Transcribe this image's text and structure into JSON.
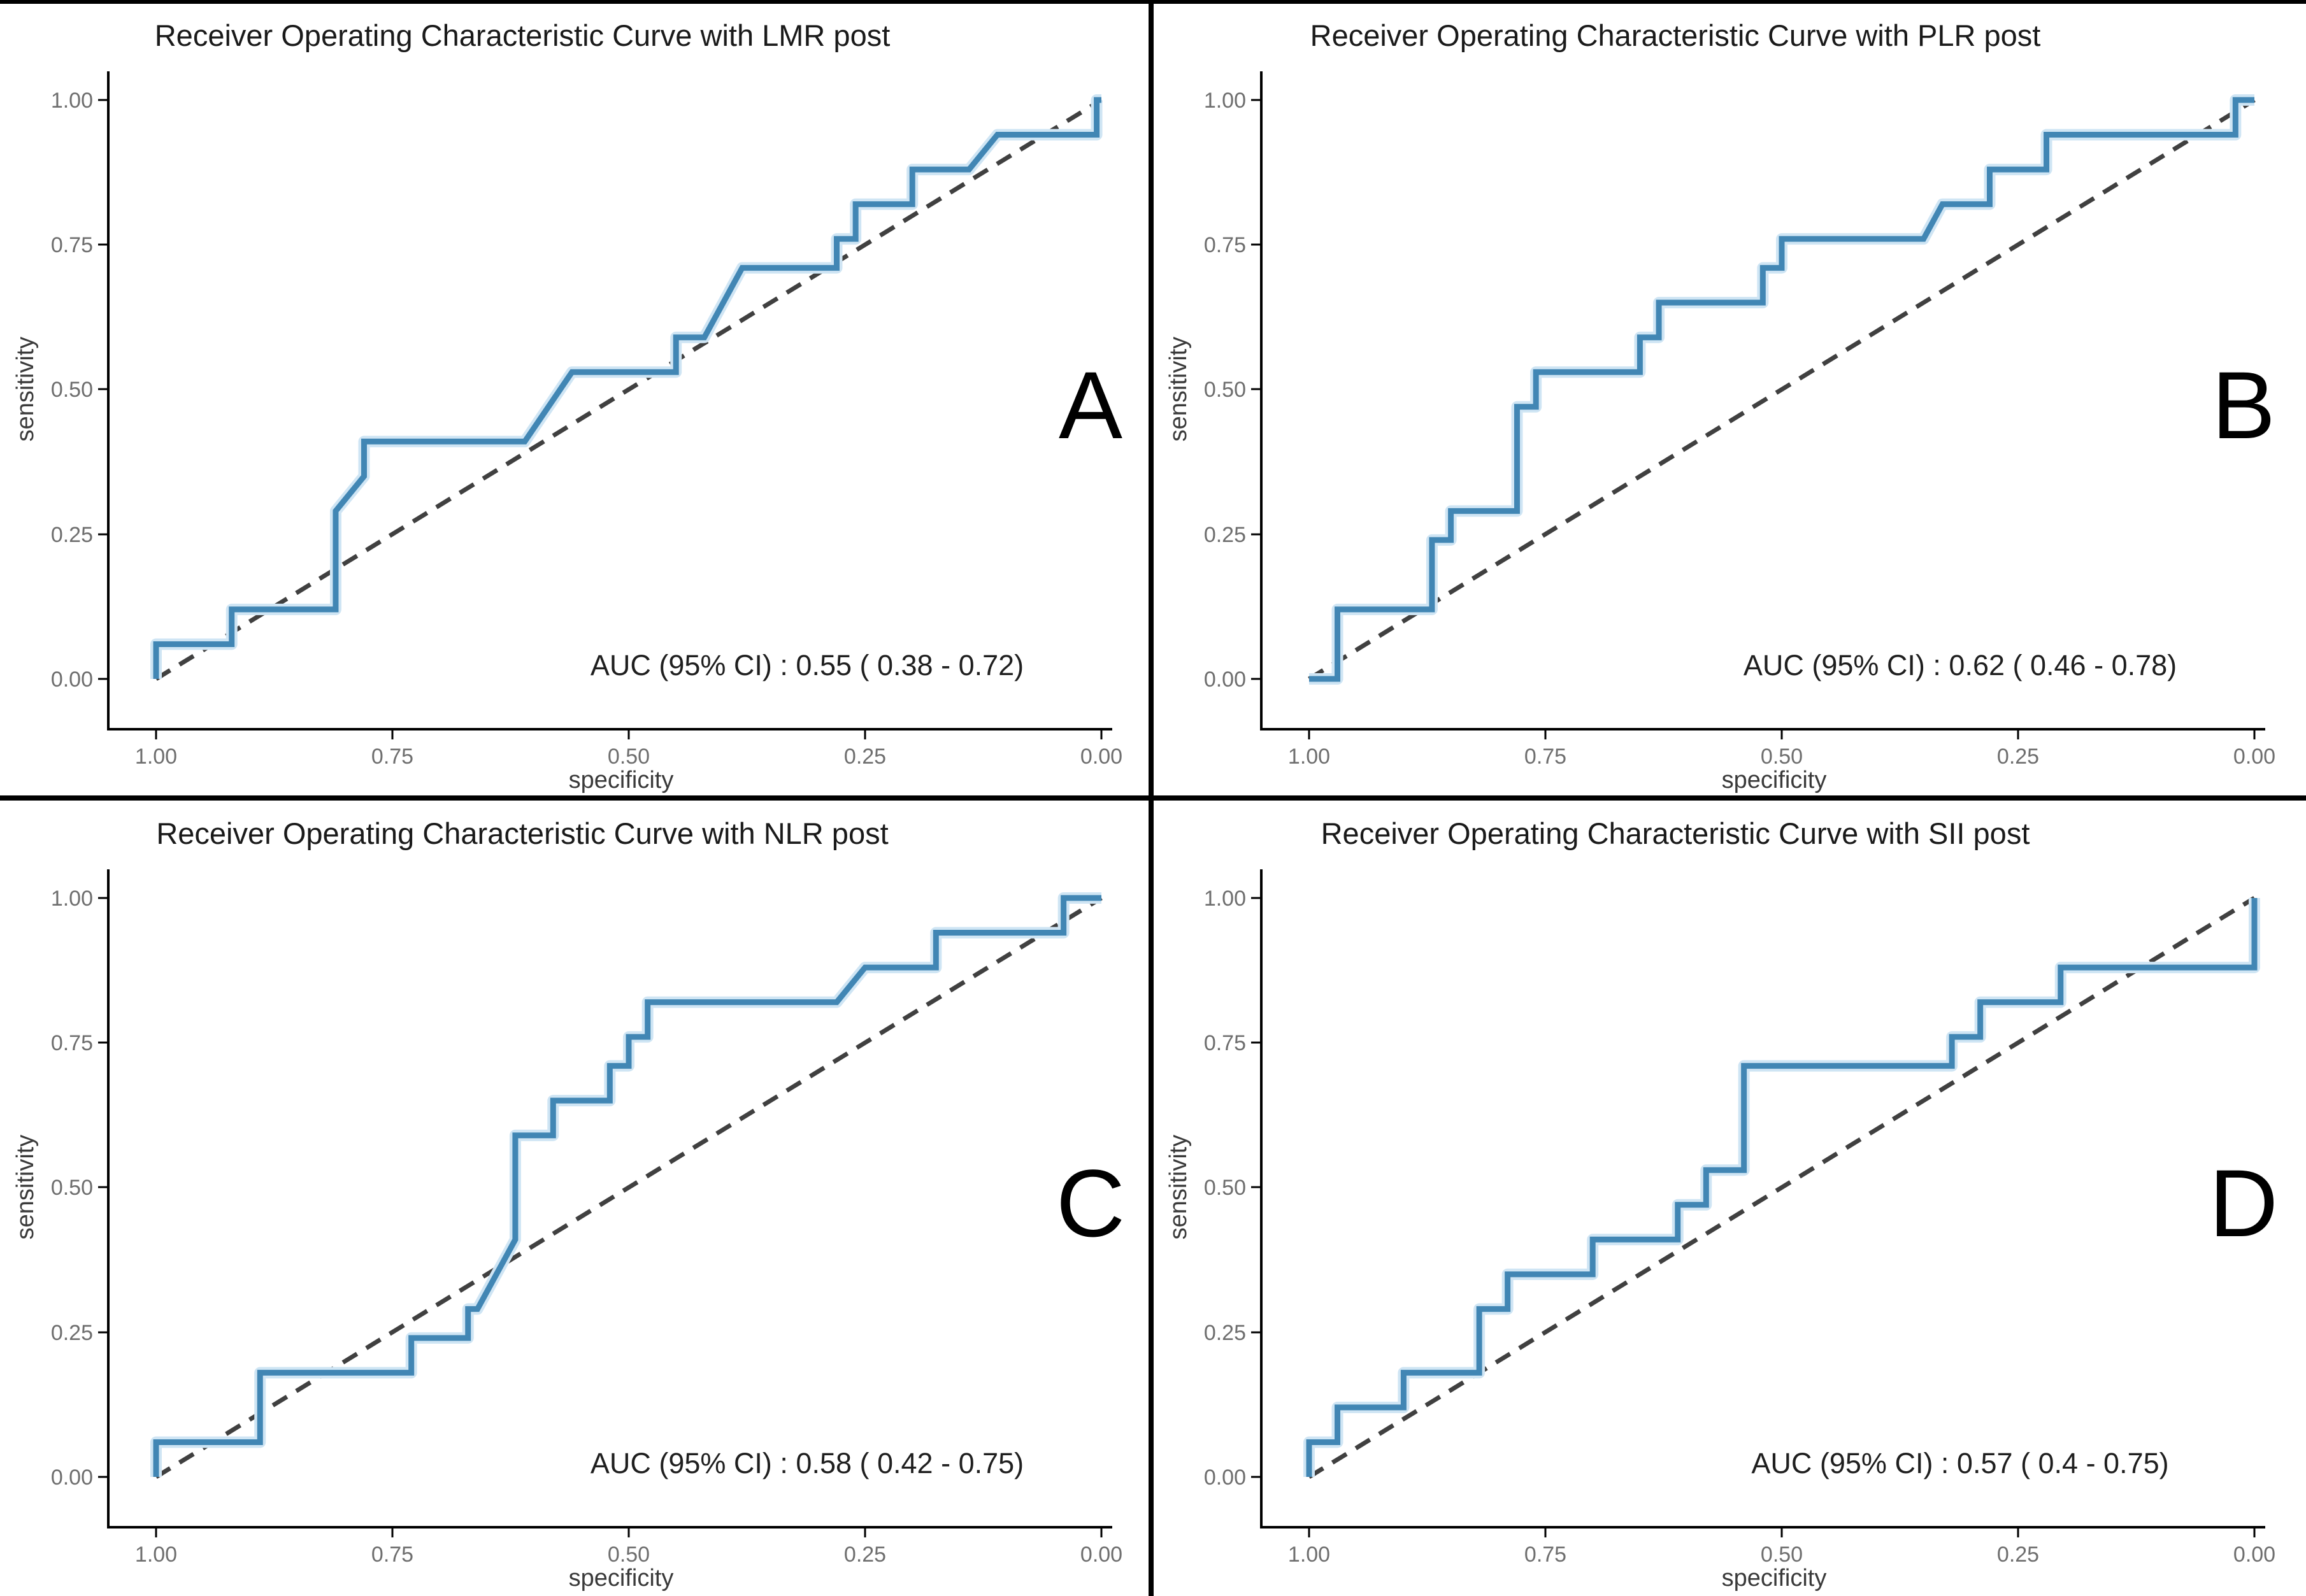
{
  "figure": {
    "background": "#ffffff",
    "top_border_color": "#000000",
    "divider_color": "#000000",
    "curve_color": "#4186b4",
    "curve_halo_color": "#cfe5f4",
    "diagonal_color": "#404040",
    "axis_line_color": "#000000",
    "tick_label_color": "#6e6e6e",
    "axis_title_color": "#3a3a3a",
    "title_color": "#1a1a1a",
    "auc_text_color": "#1f1f1f",
    "panel_letter_color": "#000000"
  },
  "chart_data": [
    {
      "type": "line",
      "subtype": "roc-step-curve",
      "panel_label": "A",
      "title": "Receiver Operating Characteristic Curve with LMR post",
      "marker": "LMR post",
      "auc": 0.55,
      "auc_ci_low": 0.38,
      "auc_ci_high": 0.72,
      "auc_text": "AUC (95% CI) : 0.55  ( 0.38 - 0.72)",
      "xlabel": "specificity",
      "ylabel": "sensitivity",
      "x_axis_reversed": true,
      "xlim": [
        1.0,
        0.0
      ],
      "ylim": [
        0.0,
        1.0
      ],
      "grid": false,
      "x_tick_labels": [
        "1.00",
        "0.75",
        "0.50",
        "0.25",
        "0.00"
      ],
      "y_tick_labels": [
        "0.00",
        "0.25",
        "0.50",
        "0.75",
        "1.00"
      ],
      "series": [
        {
          "name": "ROC curve",
          "style": "solid",
          "points": [
            [
              1.0,
              0.0
            ],
            [
              1.0,
              0.06
            ],
            [
              0.92,
              0.06
            ],
            [
              0.92,
              0.12
            ],
            [
              0.81,
              0.12
            ],
            [
              0.81,
              0.29
            ],
            [
              0.78,
              0.35
            ],
            [
              0.78,
              0.41
            ],
            [
              0.61,
              0.41
            ],
            [
              0.56,
              0.53
            ],
            [
              0.45,
              0.53
            ],
            [
              0.45,
              0.59
            ],
            [
              0.42,
              0.59
            ],
            [
              0.38,
              0.71
            ],
            [
              0.28,
              0.71
            ],
            [
              0.28,
              0.76
            ],
            [
              0.26,
              0.76
            ],
            [
              0.26,
              0.82
            ],
            [
              0.2,
              0.82
            ],
            [
              0.2,
              0.88
            ],
            [
              0.14,
              0.88
            ],
            [
              0.11,
              0.94
            ],
            [
              0.005,
              0.94
            ],
            [
              0.005,
              1.0
            ],
            [
              0.0,
              1.0
            ]
          ]
        },
        {
          "name": "chance diagonal",
          "style": "dashed",
          "points": [
            [
              1.0,
              0.0
            ],
            [
              0.0,
              1.0
            ]
          ]
        }
      ]
    },
    {
      "type": "line",
      "subtype": "roc-step-curve",
      "panel_label": "B",
      "title": "Receiver Operating Characteristic Curve with PLR post",
      "marker": "PLR post",
      "auc": 0.62,
      "auc_ci_low": 0.46,
      "auc_ci_high": 0.78,
      "auc_text": "AUC (95% CI) : 0.62  ( 0.46 - 0.78)",
      "xlabel": "specificity",
      "ylabel": "sensitivity",
      "x_axis_reversed": true,
      "xlim": [
        1.0,
        0.0
      ],
      "ylim": [
        0.0,
        1.0
      ],
      "grid": false,
      "x_tick_labels": [
        "1.00",
        "0.75",
        "0.50",
        "0.25",
        "0.00"
      ],
      "y_tick_labels": [
        "0.00",
        "0.25",
        "0.50",
        "0.75",
        "1.00"
      ],
      "series": [
        {
          "name": "ROC curve",
          "style": "solid",
          "points": [
            [
              1.0,
              0.0
            ],
            [
              0.97,
              0.0
            ],
            [
              0.97,
              0.12
            ],
            [
              0.87,
              0.12
            ],
            [
              0.87,
              0.24
            ],
            [
              0.85,
              0.24
            ],
            [
              0.85,
              0.29
            ],
            [
              0.78,
              0.29
            ],
            [
              0.78,
              0.47
            ],
            [
              0.76,
              0.47
            ],
            [
              0.76,
              0.53
            ],
            [
              0.65,
              0.53
            ],
            [
              0.65,
              0.59
            ],
            [
              0.63,
              0.59
            ],
            [
              0.63,
              0.65
            ],
            [
              0.52,
              0.65
            ],
            [
              0.52,
              0.71
            ],
            [
              0.5,
              0.71
            ],
            [
              0.5,
              0.76
            ],
            [
              0.35,
              0.76
            ],
            [
              0.33,
              0.82
            ],
            [
              0.28,
              0.82
            ],
            [
              0.28,
              0.88
            ],
            [
              0.22,
              0.88
            ],
            [
              0.22,
              0.94
            ],
            [
              0.02,
              0.94
            ],
            [
              0.02,
              1.0
            ],
            [
              0.0,
              1.0
            ]
          ]
        },
        {
          "name": "chance diagonal",
          "style": "dashed",
          "points": [
            [
              1.0,
              0.0
            ],
            [
              0.0,
              1.0
            ]
          ]
        }
      ]
    },
    {
      "type": "line",
      "subtype": "roc-step-curve",
      "panel_label": "C",
      "title": "Receiver Operating Characteristic Curve with NLR post",
      "marker": "NLR post",
      "auc": 0.58,
      "auc_ci_low": 0.42,
      "auc_ci_high": 0.75,
      "auc_text": "AUC (95% CI) : 0.58  ( 0.42 - 0.75)",
      "xlabel": "specificity",
      "ylabel": "sensitivity",
      "x_axis_reversed": true,
      "xlim": [
        1.0,
        0.0
      ],
      "ylim": [
        0.0,
        1.0
      ],
      "grid": false,
      "x_tick_labels": [
        "1.00",
        "0.75",
        "0.50",
        "0.25",
        "0.00"
      ],
      "y_tick_labels": [
        "0.00",
        "0.25",
        "0.50",
        "0.75",
        "1.00"
      ],
      "series": [
        {
          "name": "ROC curve",
          "style": "solid",
          "points": [
            [
              1.0,
              0.0
            ],
            [
              1.0,
              0.06
            ],
            [
              0.89,
              0.06
            ],
            [
              0.89,
              0.18
            ],
            [
              0.73,
              0.18
            ],
            [
              0.73,
              0.24
            ],
            [
              0.67,
              0.24
            ],
            [
              0.67,
              0.29
            ],
            [
              0.66,
              0.29
            ],
            [
              0.62,
              0.41
            ],
            [
              0.62,
              0.59
            ],
            [
              0.58,
              0.59
            ],
            [
              0.58,
              0.65
            ],
            [
              0.52,
              0.65
            ],
            [
              0.52,
              0.71
            ],
            [
              0.5,
              0.71
            ],
            [
              0.5,
              0.76
            ],
            [
              0.48,
              0.76
            ],
            [
              0.48,
              0.82
            ],
            [
              0.28,
              0.82
            ],
            [
              0.25,
              0.88
            ],
            [
              0.175,
              0.88
            ],
            [
              0.175,
              0.94
            ],
            [
              0.04,
              0.94
            ],
            [
              0.04,
              1.0
            ],
            [
              0.0,
              1.0
            ]
          ]
        },
        {
          "name": "chance diagonal",
          "style": "dashed",
          "points": [
            [
              1.0,
              0.0
            ],
            [
              0.0,
              1.0
            ]
          ]
        }
      ]
    },
    {
      "type": "line",
      "subtype": "roc-step-curve",
      "panel_label": "D",
      "title": "Receiver Operating Characteristic Curve with SII post",
      "marker": "SII post",
      "auc": 0.57,
      "auc_ci_low": 0.4,
      "auc_ci_high": 0.75,
      "auc_text": "AUC (95% CI) : 0.57  ( 0.4 - 0.75)",
      "xlabel": "specificity",
      "ylabel": "sensitivity",
      "x_axis_reversed": true,
      "xlim": [
        1.0,
        0.0
      ],
      "ylim": [
        0.0,
        1.0
      ],
      "grid": false,
      "x_tick_labels": [
        "1.00",
        "0.75",
        "0.50",
        "0.25",
        "0.00"
      ],
      "y_tick_labels": [
        "0.00",
        "0.25",
        "0.50",
        "0.75",
        "1.00"
      ],
      "series": [
        {
          "name": "ROC curve",
          "style": "solid",
          "points": [
            [
              1.0,
              0.0
            ],
            [
              1.0,
              0.06
            ],
            [
              0.97,
              0.06
            ],
            [
              0.97,
              0.12
            ],
            [
              0.9,
              0.12
            ],
            [
              0.9,
              0.18
            ],
            [
              0.82,
              0.18
            ],
            [
              0.82,
              0.29
            ],
            [
              0.79,
              0.29
            ],
            [
              0.79,
              0.35
            ],
            [
              0.7,
              0.35
            ],
            [
              0.7,
              0.41
            ],
            [
              0.61,
              0.41
            ],
            [
              0.61,
              0.47
            ],
            [
              0.58,
              0.47
            ],
            [
              0.58,
              0.53
            ],
            [
              0.54,
              0.53
            ],
            [
              0.54,
              0.71
            ],
            [
              0.32,
              0.71
            ],
            [
              0.32,
              0.76
            ],
            [
              0.29,
              0.76
            ],
            [
              0.29,
              0.82
            ],
            [
              0.205,
              0.82
            ],
            [
              0.205,
              0.88
            ],
            [
              0.0,
              0.88
            ],
            [
              0.0,
              1.0
            ]
          ]
        },
        {
          "name": "chance diagonal",
          "style": "dashed",
          "points": [
            [
              1.0,
              0.0
            ],
            [
              0.0,
              1.0
            ]
          ]
        }
      ]
    }
  ]
}
